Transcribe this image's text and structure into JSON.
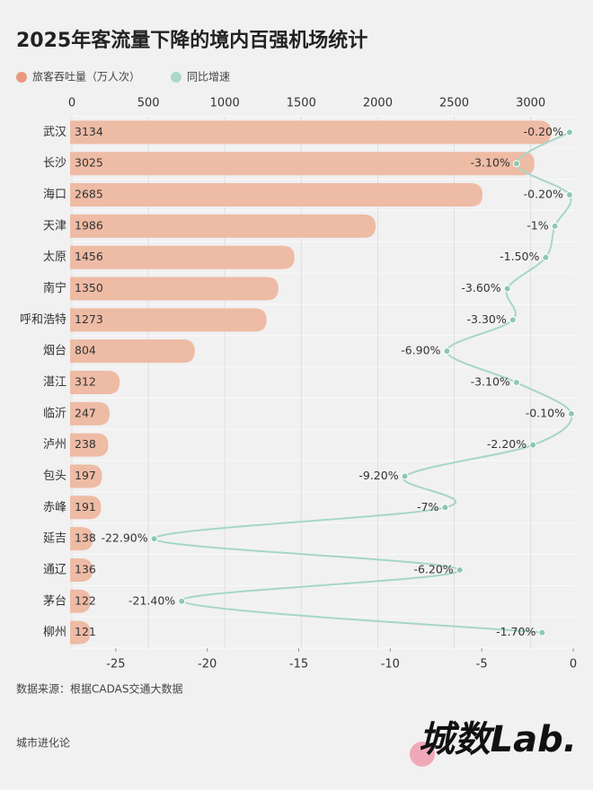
{
  "chart_data": {
    "type": "bar",
    "orientation": "horizontal",
    "title": "2025年客流量下降的境内百强机场统计",
    "categories": [
      "武汉",
      "长沙",
      "海口",
      "天津",
      "太原",
      "南宁",
      "呼和浩特",
      "烟台",
      "湛江",
      "临沂",
      "泸州",
      "包头",
      "赤峰",
      "延吉",
      "通辽",
      "茅台",
      "柳州"
    ],
    "series": [
      {
        "name": "旅客吞吐量（万人次）",
        "type": "bar",
        "color": "#eebba5",
        "legend_color": "#e9997c",
        "values": [
          3134,
          3025,
          2685,
          1986,
          1456,
          1350,
          1273,
          804,
          312,
          247,
          238,
          197,
          191,
          138,
          136,
          122,
          121
        ]
      },
      {
        "name": "同比增速",
        "type": "line",
        "axis": "x2",
        "color": "#a6d6c7",
        "marker_color": "#8cc8b4",
        "legend_color": "#acd8ca",
        "values": [
          -0.2,
          -3.1,
          -0.2,
          -1,
          -1.5,
          -3.6,
          -3.3,
          -6.9,
          -3.1,
          -0.1,
          -2.2,
          -9.2,
          -7,
          -22.9,
          -6.2,
          -21.4,
          -1.7
        ],
        "value_labels": [
          "-0.20%",
          "-3.10%",
          "-0.20%",
          "-1%",
          "-1.50%",
          "-3.60%",
          "-3.30%",
          "-6.90%",
          "-3.10%",
          "-0.10%",
          "-2.20%",
          "-9.20%",
          "-7%",
          "-22.90%",
          "-6.20%",
          "-21.40%",
          "-1.70%"
        ]
      }
    ],
    "xlim": [
      0,
      3290
    ],
    "xticks": [
      0,
      500,
      1000,
      1500,
      2000,
      2500,
      3000
    ],
    "x2lim": [
      -27.4,
      0.1
    ],
    "x2ticks": [
      -25,
      -20,
      -15,
      -10,
      -5,
      0
    ],
    "grid": true,
    "source": "数据来源：根据CADAS交通大数据",
    "footer": "城市进化论",
    "logo": "城数Lab."
  }
}
